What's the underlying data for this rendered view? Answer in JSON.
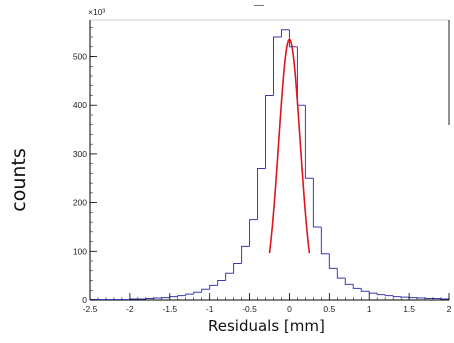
{
  "chart_data": {
    "type": "bar",
    "title": "",
    "title_mark": "—",
    "xlabel": "Residuals [mm]",
    "ylabel": "counts",
    "y_multiplier": "×10³",
    "xlim": [
      -2.5,
      2.0
    ],
    "ylim": [
      0,
      575
    ],
    "x_ticks": [
      "-2.5",
      "-2",
      "-1.5",
      "-1",
      "-0.5",
      "0",
      "0.5",
      "1",
      "1.5",
      "2"
    ],
    "y_ticks": [
      "0",
      "100",
      "200",
      "300",
      "400",
      "500"
    ],
    "colors": {
      "histogram": "#3a3ab0",
      "fit": "#e0141e",
      "axes": "#000000"
    },
    "histogram": {
      "bin_centers": [
        -2.45,
        -2.35,
        -2.25,
        -2.15,
        -2.05,
        -1.95,
        -1.85,
        -1.75,
        -1.65,
        -1.55,
        -1.45,
        -1.35,
        -1.25,
        -1.15,
        -1.05,
        -0.95,
        -0.85,
        -0.75,
        -0.65,
        -0.55,
        -0.45,
        -0.35,
        -0.25,
        -0.15,
        -0.05,
        0.05,
        0.15,
        0.25,
        0.35,
        0.45,
        0.55,
        0.65,
        0.75,
        0.85,
        0.95,
        1.05,
        1.15,
        1.25,
        1.35,
        1.45,
        1.55,
        1.65,
        1.75,
        1.85,
        1.95
      ],
      "counts": [
        1,
        1,
        1,
        1,
        1,
        2,
        2,
        3,
        4,
        5,
        7,
        9,
        12,
        16,
        22,
        30,
        40,
        55,
        75,
        110,
        165,
        270,
        420,
        540,
        555,
        520,
        400,
        250,
        150,
        95,
        65,
        45,
        32,
        24,
        18,
        14,
        11,
        9,
        7,
        6,
        5,
        4,
        3,
        3,
        2
      ]
    },
    "fit": {
      "amplitude": 535,
      "mean": 0.0,
      "sigma": 0.135,
      "x_range": [
        -0.25,
        0.25
      ]
    }
  }
}
